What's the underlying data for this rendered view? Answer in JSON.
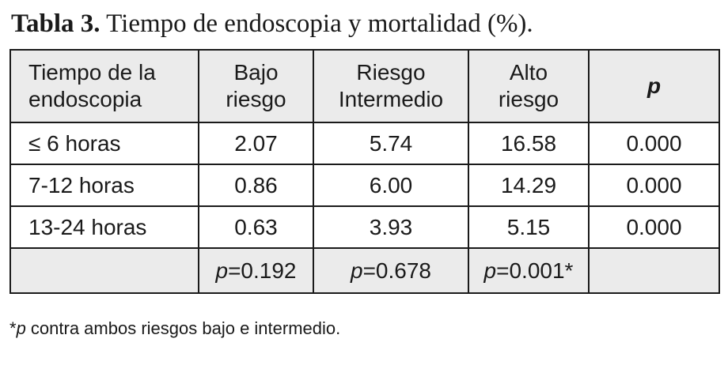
{
  "caption": {
    "lead": "Tabla 3.",
    "text": " Tiempo de endoscopia y mortalidad (%)."
  },
  "table": {
    "headers": [
      [
        "Tiempo de la",
        "endoscopia"
      ],
      [
        "Bajo",
        "riesgo"
      ],
      [
        "Riesgo",
        "Intermedio"
      ],
      [
        "Alto",
        "riesgo"
      ],
      [
        "p"
      ]
    ],
    "rows": [
      {
        "label": "≤ 6 horas",
        "values": [
          "2.07",
          "5.74",
          "16.58",
          "0.000"
        ]
      },
      {
        "label": "7-12 horas",
        "values": [
          "0.86",
          "6.00",
          "14.29",
          "0.000"
        ]
      },
      {
        "label": "13-24 horas",
        "values": [
          "0.63",
          "3.93",
          "5.15",
          "0.000"
        ]
      }
    ],
    "pvalue_row": {
      "p_symbol": "p",
      "values": [
        "=0.192",
        "=0.678",
        "=0.001*"
      ]
    }
  },
  "footnote": {
    "star": "*",
    "p_symbol": "p",
    "text": " contra ambos riesgos bajo e intermedio."
  }
}
